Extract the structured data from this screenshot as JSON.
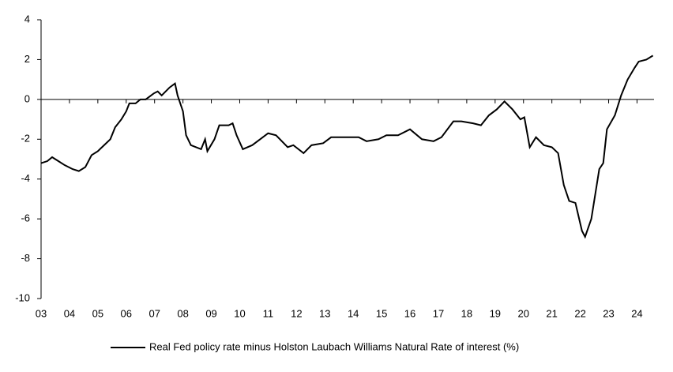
{
  "chart_data": {
    "type": "line",
    "x": [
      3.0,
      3.22,
      3.39,
      3.61,
      3.83,
      4.11,
      4.33,
      4.56,
      4.78,
      5.0,
      5.22,
      5.44,
      5.61,
      5.83,
      6.0,
      6.11,
      6.33,
      6.5,
      6.69,
      6.97,
      7.11,
      7.25,
      7.53,
      7.72,
      7.81,
      8.0,
      8.11,
      8.28,
      8.64,
      8.78,
      8.86,
      9.11,
      9.28,
      9.61,
      9.75,
      9.89,
      10.11,
      10.44,
      10.72,
      11.0,
      11.28,
      11.69,
      11.89,
      12.25,
      12.53,
      12.94,
      13.22,
      13.78,
      14.19,
      14.47,
      14.89,
      15.17,
      15.58,
      16.0,
      16.42,
      16.83,
      17.11,
      17.53,
      17.81,
      18.22,
      18.5,
      18.78,
      19.06,
      19.33,
      19.61,
      19.89,
      20.03,
      20.22,
      20.44,
      20.72,
      21.0,
      21.22,
      21.42,
      21.61,
      21.83,
      22.06,
      22.17,
      22.39,
      22.67,
      22.81,
      22.94,
      23.22,
      23.44,
      23.67,
      23.92,
      24.06,
      24.33,
      24.56
    ],
    "series": [
      {
        "name": "Real Fed policy rate minus Holston Laubach Williams Natural Rate of interest (%)",
        "color": "#000000",
        "values": [
          -3.2,
          -3.1,
          -2.9,
          -3.1,
          -3.3,
          -3.5,
          -3.6,
          -3.4,
          -2.8,
          -2.6,
          -2.3,
          -2.0,
          -1.4,
          -1.0,
          -0.6,
          -0.2,
          -0.2,
          0.0,
          0.0,
          0.3,
          0.4,
          0.2,
          0.6,
          0.8,
          0.2,
          -0.6,
          -1.8,
          -2.3,
          -2.5,
          -2.0,
          -2.6,
          -2.0,
          -1.3,
          -1.3,
          -1.2,
          -1.8,
          -2.5,
          -2.3,
          -2.0,
          -1.7,
          -1.8,
          -2.4,
          -2.3,
          -2.7,
          -2.3,
          -2.2,
          -1.9,
          -1.9,
          -1.9,
          -2.1,
          -2.0,
          -1.8,
          -1.8,
          -1.5,
          -2.0,
          -2.1,
          -1.9,
          -1.1,
          -1.1,
          -1.2,
          -1.3,
          -0.8,
          -0.5,
          -0.1,
          -0.5,
          -1.0,
          -0.9,
          -2.4,
          -1.9,
          -2.3,
          -2.4,
          -2.7,
          -4.3,
          -5.1,
          -5.2,
          -6.6,
          -6.9,
          -6.0,
          -3.5,
          -3.2,
          -1.5,
          -0.8,
          0.2,
          1.0,
          1.6,
          1.9,
          2.0,
          2.2
        ]
      }
    ],
    "xlim": [
      3,
      24.6
    ],
    "xticks": [
      {
        "value": 3,
        "label": "03"
      },
      {
        "value": 4,
        "label": "04"
      },
      {
        "value": 5,
        "label": "05"
      },
      {
        "value": 6,
        "label": "06"
      },
      {
        "value": 7,
        "label": "07"
      },
      {
        "value": 8,
        "label": "08"
      },
      {
        "value": 9,
        "label": "09"
      },
      10,
      11,
      12,
      13,
      14,
      15,
      16,
      17,
      18,
      19,
      20,
      21,
      22,
      23,
      24
    ],
    "ylim": [
      -10,
      4
    ],
    "yticks": [
      -10,
      -8,
      -6,
      -4,
      -2,
      0,
      2,
      4
    ],
    "legend": "bottom"
  }
}
